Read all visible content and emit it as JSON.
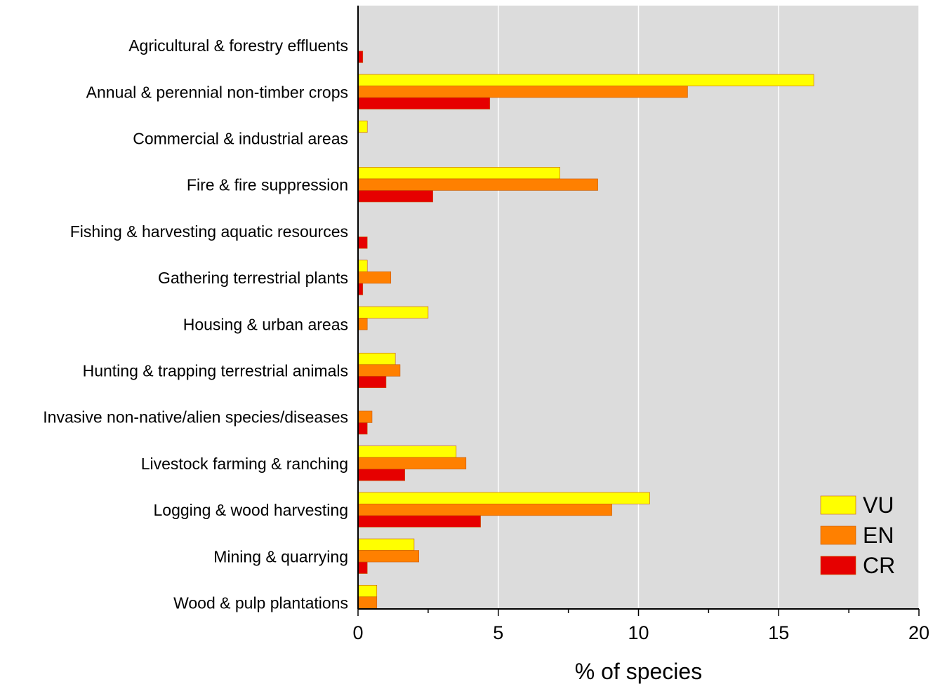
{
  "chart_data": {
    "type": "bar",
    "orientation": "horizontal",
    "categories": [
      "Agricultural & forestry effluents",
      "Annual & perennial non-timber crops",
      "Commercial & industrial areas",
      "Fire & fire suppression",
      "Fishing & harvesting aquatic resources",
      "Gathering terrestrial plants",
      "Housing & urban areas",
      "Hunting & trapping terrestrial animals",
      "Invasive non-native/alien species/diseases",
      "Livestock farming & ranching",
      "Logging & wood harvesting",
      "Mining & quarrying",
      "Wood & pulp plantations"
    ],
    "series": [
      {
        "name": "VU",
        "color": "#ffff00",
        "values": [
          0,
          16.25,
          0.33,
          7.2,
          0,
          0.33,
          2.5,
          1.33,
          0,
          3.5,
          10.4,
          2.0,
          0.67
        ]
      },
      {
        "name": "EN",
        "color": "#ff8000",
        "values": [
          0,
          11.75,
          0,
          8.55,
          0,
          1.17,
          0.33,
          1.5,
          0.5,
          3.85,
          9.05,
          2.17,
          0.67
        ]
      },
      {
        "name": "CR",
        "color": "#e60000",
        "values": [
          0.17,
          4.7,
          0,
          2.67,
          0.33,
          0.17,
          0,
          1.0,
          0.33,
          1.67,
          4.37,
          0.33,
          0
        ]
      }
    ],
    "xlabel": "% of species",
    "ylabel": "",
    "xlim": [
      0,
      20
    ],
    "xticks": [
      0,
      5,
      10,
      15,
      20
    ],
    "xtick_labels": [
      "0",
      "5",
      "10",
      "15",
      "20"
    ],
    "grid": "vertical",
    "legend_position": "bottom-right",
    "background_color": "#dcdcdc",
    "grid_color": "#ffffff"
  }
}
